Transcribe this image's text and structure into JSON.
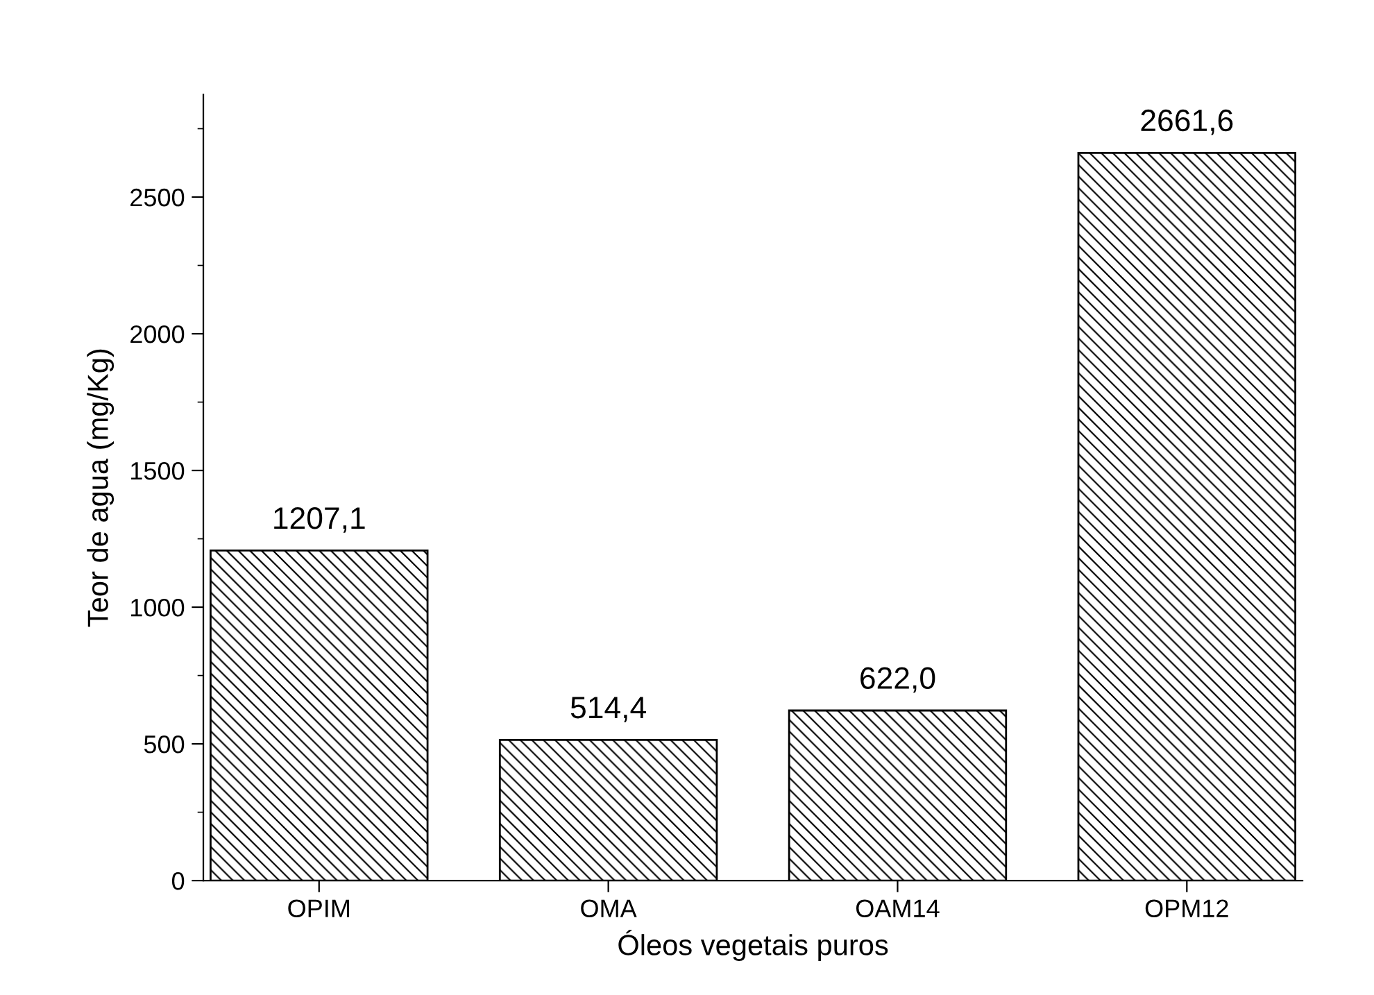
{
  "chart_data": {
    "type": "bar",
    "xlabel": "Óleos vegetais puros",
    "ylabel": "Teor de agua (mg/Kg)",
    "categories": [
      "OPIM",
      "OMA",
      "OAM14",
      "OPM12"
    ],
    "values": [
      1207.1,
      514.4,
      622.0,
      2661.6
    ],
    "value_labels": [
      "1207,1",
      "514,4",
      "622,0",
      "2661,6"
    ],
    "color": "#000000",
    "ylim": [
      0,
      2875
    ],
    "yticks": [
      0,
      500,
      1000,
      1500,
      2000,
      2500
    ],
    "grid": false,
    "legend": false
  }
}
